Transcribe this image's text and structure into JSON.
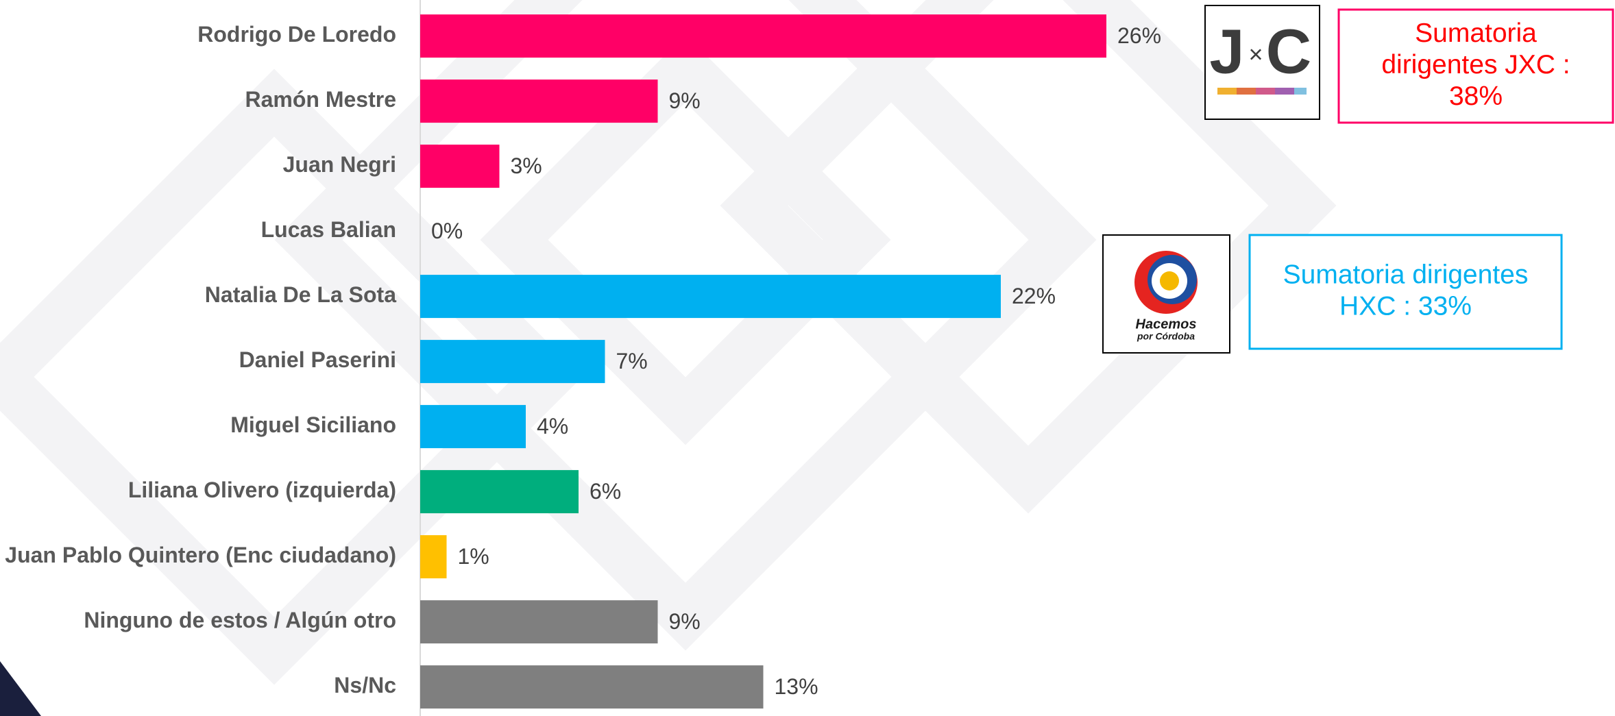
{
  "chart_data": {
    "type": "bar",
    "orientation": "horizontal",
    "categories": [
      "Rodrigo De Loredo",
      "Ramón Mestre",
      "Juan Negri",
      "Lucas Balian",
      "Natalia De La Sota",
      "Daniel Paserini",
      "Miguel Siciliano",
      "Liliana Olivero (izquierda)",
      "Juan Pablo Quintero (Enc ciudadano)",
      "Ninguno de estos / Algún otro",
      "Ns/Nc"
    ],
    "values": [
      26,
      9,
      3,
      0,
      22,
      7,
      4,
      6,
      1,
      9,
      13
    ],
    "value_labels": [
      "26%",
      "9%",
      "3%",
      "0%",
      "22%",
      "7%",
      "4%",
      "6%",
      "1%",
      "9%",
      "13%"
    ],
    "colors": [
      "#ff0066",
      "#ff0066",
      "#ff0066",
      "#ff0066",
      "#00b0f0",
      "#00b0f0",
      "#00b0f0",
      "#00ae7d",
      "#ffc000",
      "#7f7f7f",
      "#7f7f7f"
    ],
    "xlim": [
      0,
      45
    ],
    "annotations": [
      {
        "lines": [
          "Sumatoria",
          "dirigentes JXC :",
          "38%"
        ],
        "color": "#ff0000",
        "border": "#ff0066"
      },
      {
        "lines": [
          "Sumatoria dirigentes",
          "HXC : 33%"
        ],
        "color": "#00b0f0",
        "border": "#00b0f0"
      }
    ],
    "logos": [
      {
        "letters": [
          "J",
          "×",
          "C"
        ]
      },
      {
        "lines": [
          "Hacemos",
          "por Córdoba"
        ]
      }
    ]
  }
}
